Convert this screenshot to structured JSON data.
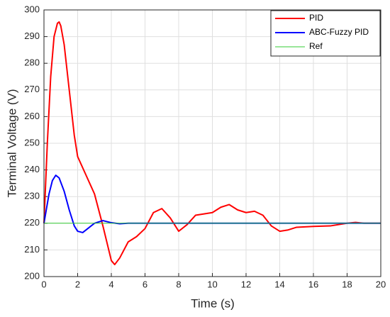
{
  "chart_data": {
    "type": "line",
    "xlabel": "Time (s)",
    "ylabel": "Terminal Voltage (V)",
    "xlim": [
      0,
      20
    ],
    "ylim": [
      200,
      300
    ],
    "xticks": [
      0,
      2,
      4,
      6,
      8,
      10,
      12,
      14,
      16,
      18,
      20
    ],
    "yticks": [
      200,
      210,
      220,
      230,
      240,
      250,
      260,
      270,
      280,
      290,
      300
    ],
    "grid": true,
    "legend": "northeast",
    "series": [
      {
        "name": "PID",
        "color": "#ff0000",
        "width": 2,
        "x": [
          0,
          0.2,
          0.4,
          0.6,
          0.8,
          0.9,
          1.0,
          1.2,
          1.5,
          1.8,
          2.0,
          2.5,
          3.0,
          3.5,
          4.0,
          4.2,
          4.5,
          5.0,
          5.5,
          6.0,
          6.5,
          7.0,
          7.5,
          8.0,
          8.5,
          9.0,
          9.5,
          10.0,
          10.5,
          11.0,
          11.5,
          12.0,
          12.5,
          13.0,
          13.5,
          14.0,
          14.5,
          15.0,
          16.0,
          17.0,
          18.0,
          18.5,
          19.0,
          20.0
        ],
        "values": [
          220,
          250,
          275,
          290,
          295,
          295.5,
          294,
          287,
          270,
          253,
          245,
          238,
          231,
          219,
          206,
          204.5,
          207,
          213,
          215,
          218,
          224,
          225.5,
          222,
          217,
          219.5,
          223,
          223.5,
          224,
          226,
          227,
          225,
          224,
          224.5,
          223,
          219,
          217,
          217.5,
          218.5,
          218.8,
          219,
          220,
          220.3,
          220,
          220
        ]
      },
      {
        "name": "ABC-Fuzzy PID",
        "color": "#0000ff",
        "width": 2,
        "x": [
          0,
          0.3,
          0.5,
          0.7,
          0.9,
          1.2,
          1.5,
          1.8,
          2.0,
          2.3,
          2.6,
          3.0,
          3.5,
          4.0,
          4.5,
          5.0,
          6.0,
          8.0,
          10.0,
          12.0,
          14.0,
          16.0,
          18.0,
          20.0
        ],
        "values": [
          220,
          231,
          236,
          238,
          237,
          232,
          225,
          219,
          217,
          216.5,
          218,
          220,
          221,
          220.2,
          219.8,
          220,
          220,
          220,
          220,
          220,
          220,
          220,
          220,
          220
        ]
      },
      {
        "name": "Ref",
        "color": "#33cc33",
        "width": 1,
        "x": [
          0,
          20
        ],
        "values": [
          220,
          220
        ]
      }
    ]
  }
}
